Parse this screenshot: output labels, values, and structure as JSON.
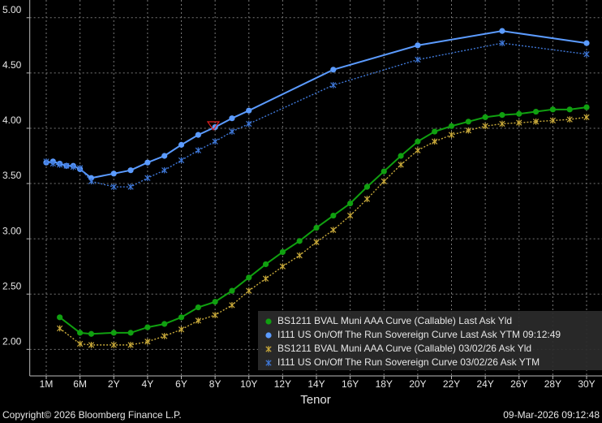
{
  "chart_data": {
    "type": "line",
    "x_label": "Tenor",
    "footer_left": "Copyright© 2026 Bloomberg Finance L.P.",
    "footer_right": "09-Mar-2026 09:12:48",
    "xlim": [
      0,
      30
    ],
    "xticks": [
      {
        "value": 0.0833,
        "label": "1M"
      },
      {
        "value": 0.5,
        "label": "6M"
      },
      {
        "value": 2,
        "label": "2Y"
      },
      {
        "value": 4,
        "label": "4Y"
      },
      {
        "value": 6,
        "label": "6Y"
      },
      {
        "value": 8,
        "label": "8Y"
      },
      {
        "value": 10,
        "label": "10Y"
      },
      {
        "value": 12,
        "label": "12Y"
      },
      {
        "value": 14,
        "label": "14Y"
      },
      {
        "value": 16,
        "label": "16Y"
      },
      {
        "value": 18,
        "label": "18Y"
      },
      {
        "value": 20,
        "label": "20Y"
      },
      {
        "value": 22,
        "label": "22Y"
      },
      {
        "value": 24,
        "label": "24Y"
      },
      {
        "value": 26,
        "label": "26Y"
      },
      {
        "value": 28,
        "label": "28Y"
      },
      {
        "value": 30,
        "label": "30Y"
      }
    ],
    "ylim": [
      1.76,
      5.16
    ],
    "yticks": [
      {
        "value": 2,
        "label": "2.00"
      },
      {
        "value": 2.5,
        "label": "2.50"
      },
      {
        "value": 3,
        "label": "3.00"
      },
      {
        "value": 3.5,
        "label": "3.50"
      },
      {
        "value": 4,
        "label": "4.00"
      },
      {
        "value": 4.5,
        "label": "4.50"
      },
      {
        "value": 5,
        "label": "5.00"
      }
    ],
    "grid": true,
    "series": [
      {
        "name": "BS1211 BVAL Muni AAA Curve (Callable) Last Ask Yld",
        "color": "#10a010",
        "style": "solid",
        "marker": "circle",
        "x": [
          0.25,
          0.5,
          1,
          2,
          3,
          4,
          5,
          6,
          7,
          8,
          9,
          10,
          11,
          12,
          13,
          14,
          15,
          16,
          17,
          18,
          19,
          20,
          21,
          22,
          23,
          24,
          25,
          26,
          27,
          28,
          29,
          30
        ],
        "values": [
          2.29,
          2.15,
          2.14,
          2.15,
          2.15,
          2.2,
          2.23,
          2.29,
          2.38,
          2.43,
          2.53,
          2.65,
          2.77,
          2.88,
          2.98,
          3.1,
          3.21,
          3.32,
          3.47,
          3.61,
          3.75,
          3.88,
          3.97,
          4.02,
          4.06,
          4.1,
          4.12,
          4.13,
          4.15,
          4.17,
          4.17,
          4.19
        ]
      },
      {
        "name": "I111 US On/Off The Run Sovereign Curve Last Ask YTM 09:12:49",
        "color": "#5b9bff",
        "style": "solid",
        "marker": "circle",
        "x": [
          0.0833,
          0.1667,
          0.25,
          0.3333,
          0.4167,
          0.5,
          1,
          2,
          3,
          4,
          5,
          6,
          7,
          8,
          9,
          10,
          15,
          20,
          25,
          30
        ],
        "values": [
          3.69,
          3.7,
          3.68,
          3.66,
          3.66,
          3.63,
          3.55,
          3.59,
          3.62,
          3.69,
          3.75,
          3.85,
          3.94,
          4.01,
          4.09,
          4.16,
          4.53,
          4.75,
          4.88,
          4.77
        ]
      },
      {
        "name": "BS1211 BVAL Muni AAA Curve (Callable) 03/02/26 Ask Yld",
        "color": "#c8a93a",
        "style": "dotted",
        "marker": "star",
        "x": [
          0.25,
          0.5,
          1,
          2,
          3,
          4,
          5,
          6,
          7,
          8,
          9,
          10,
          11,
          12,
          13,
          14,
          15,
          16,
          17,
          18,
          19,
          20,
          21,
          22,
          23,
          24,
          25,
          26,
          27,
          28,
          29,
          30
        ],
        "values": [
          2.19,
          2.05,
          2.04,
          2.04,
          2.04,
          2.07,
          2.12,
          2.18,
          2.26,
          2.31,
          2.4,
          2.53,
          2.64,
          2.75,
          2.85,
          2.97,
          3.08,
          3.21,
          3.36,
          3.52,
          3.67,
          3.8,
          3.88,
          3.94,
          3.98,
          4.02,
          4.04,
          4.05,
          4.06,
          4.07,
          4.08,
          4.1
        ]
      },
      {
        "name": "I111 US On/Off The Run Sovereign Curve 03/02/26 Ask YTM",
        "color": "#3f78d8",
        "style": "dotted",
        "marker": "star",
        "x": [
          0.0833,
          0.1667,
          0.25,
          0.3333,
          0.4167,
          0.5,
          1,
          2,
          3,
          4,
          5,
          6,
          7,
          8,
          9,
          10,
          15,
          20,
          25,
          30
        ],
        "values": [
          3.7,
          3.68,
          3.67,
          3.66,
          3.65,
          3.64,
          3.52,
          3.47,
          3.47,
          3.55,
          3.62,
          3.71,
          3.8,
          3.88,
          3.97,
          4.04,
          4.39,
          4.62,
          4.77,
          4.67
        ]
      }
    ]
  }
}
